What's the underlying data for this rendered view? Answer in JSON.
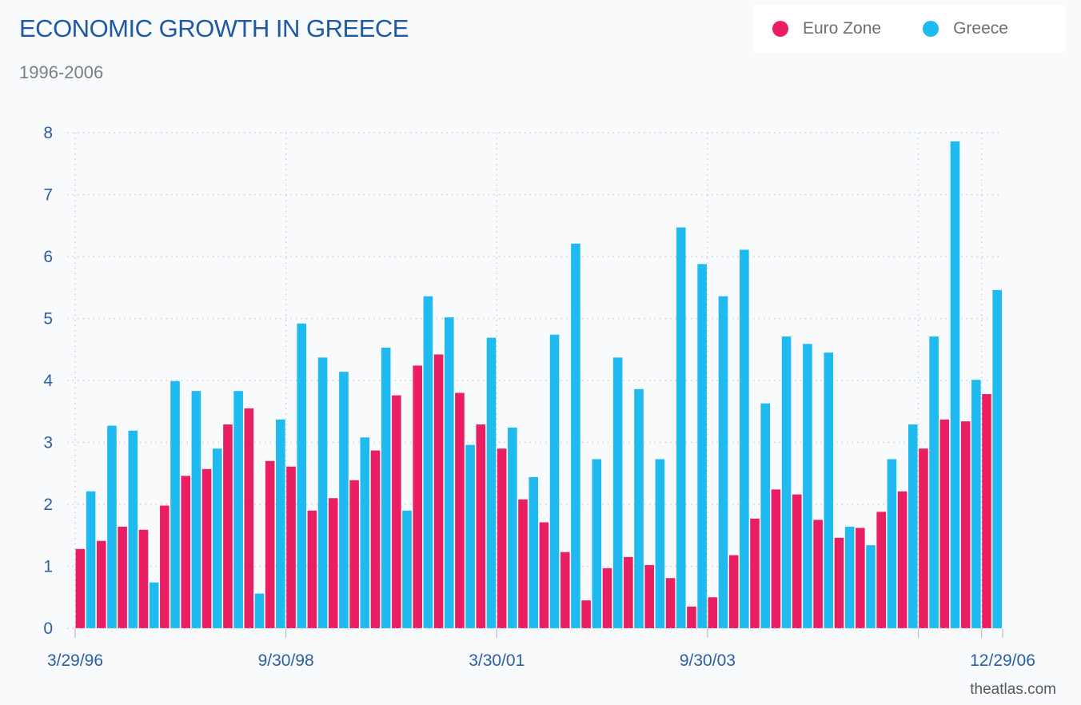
{
  "header": {
    "title": "ECONOMIC GROWTH IN GREECE",
    "subtitle": "1996-2006"
  },
  "legend": {
    "items": [
      {
        "label": "Euro Zone",
        "color": "#e91e63"
      },
      {
        "label": "Greece",
        "color": "#1fbaf0"
      }
    ]
  },
  "footer": {
    "source": "theatlas.com"
  },
  "chart_data": {
    "type": "bar",
    "grid": true,
    "legend_position": "top-right",
    "ylim": [
      0,
      8
    ],
    "yticks": [
      "0",
      "1",
      "2",
      "3",
      "4",
      "5",
      "6",
      "7",
      "8"
    ],
    "x_tick_labels": [
      {
        "label": "3/29/96",
        "index": 0
      },
      {
        "label": "9/30/98",
        "index": 10
      },
      {
        "label": "3/30/01",
        "index": 20
      },
      {
        "label": "9/30/03",
        "index": 30
      },
      {
        "label": "12/29/06",
        "index": 43
      }
    ],
    "series": [
      {
        "name": "Euro Zone",
        "color": "#e91e63",
        "values": [
          1.28,
          1.41,
          1.64,
          1.59,
          1.98,
          2.46,
          2.57,
          3.29,
          3.55,
          2.7,
          2.61,
          1.9,
          2.1,
          2.39,
          2.87,
          3.76,
          4.24,
          4.42,
          3.8,
          3.29,
          2.9,
          2.08,
          1.71,
          1.23,
          0.45,
          0.97,
          1.15,
          1.02,
          0.81,
          0.35,
          0.5,
          1.18,
          1.77,
          2.24,
          2.16,
          1.75,
          1.46,
          1.62,
          1.88,
          2.21,
          2.9,
          3.37,
          3.34,
          3.78
        ]
      },
      {
        "name": "Greece",
        "color": "#1fbaf0",
        "values": [
          2.21,
          3.27,
          3.19,
          0.74,
          3.99,
          3.83,
          2.9,
          3.83,
          0.56,
          3.37,
          4.92,
          4.37,
          4.14,
          3.08,
          4.53,
          1.9,
          5.36,
          5.02,
          2.96,
          4.69,
          3.24,
          2.44,
          4.74,
          6.21,
          2.73,
          4.37,
          3.86,
          2.73,
          6.47,
          5.88,
          5.36,
          6.11,
          3.63,
          4.71,
          4.59,
          4.45,
          1.64,
          1.34,
          2.73,
          3.29,
          4.71,
          7.86,
          4.01,
          5.46
        ]
      }
    ]
  }
}
